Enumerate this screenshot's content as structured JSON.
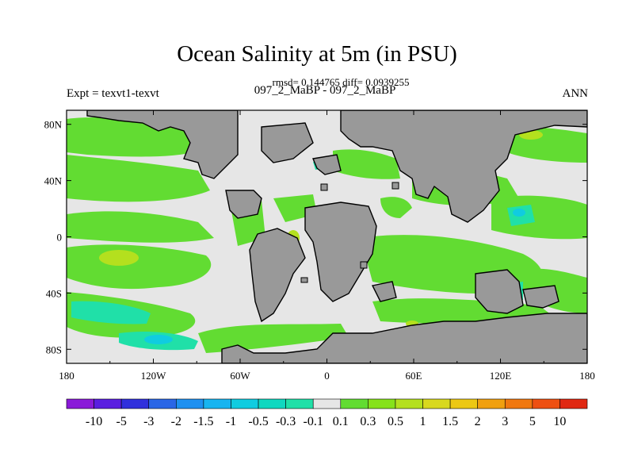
{
  "title": "Ocean Salinity at 5m (in PSU)",
  "stats": "rmsd= 0.144765 diff= 0.0939255",
  "left_label": "Expt = texvt1-texvt",
  "center_label": "097_2_MaBP - 097_2_MaBP",
  "right_label": "ANN",
  "x_ticks": [
    "180",
    "120W",
    "60W",
    "0",
    "60E",
    "120E",
    "180"
  ],
  "y_ticks": [
    "80N",
    "40N",
    "0",
    "40S",
    "80S"
  ],
  "colorbar": {
    "labels": [
      "-10",
      "-5",
      "-3",
      "-2",
      "-1.5",
      "-1",
      "-0.5",
      "-0.3",
      "-0.1",
      "0.1",
      "0.3",
      "0.5",
      "1",
      "1.5",
      "2",
      "3",
      "5",
      "10"
    ],
    "colors": [
      "#8a1ad8",
      "#5a1ee0",
      "#3030dc",
      "#2a66e6",
      "#1e90f0",
      "#18b4f0",
      "#10cce0",
      "#10d8c0",
      "#20e0a8",
      "#e6e6e6",
      "#62dc32",
      "#86e21a",
      "#b4e01e",
      "#d8d81e",
      "#ecc814",
      "#f0a010",
      "#f07810",
      "#ee5012",
      "#e02812"
    ]
  },
  "colors": {
    "land": "#999999",
    "near_zero": "#e6e6e6",
    "positive_small": "#62dc32",
    "positive_medium": "#b4e01e",
    "negative_small": "#20e0a8",
    "negative_medium": "#10cce0"
  }
}
